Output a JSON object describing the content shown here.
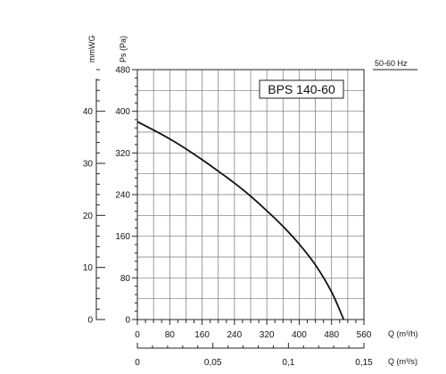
{
  "chart_data": {
    "type": "line",
    "model_label": "BPS 140-60",
    "frequency_label": "50-60 Hz",
    "ylabel_pa": "Ps (Pa)",
    "ylabel_mmwg": "mmWG",
    "xlabel_m3h": "Q (m³/h)",
    "xlabel_m3s": "Q (m³/s)",
    "xlim_m3h": [
      0,
      560
    ],
    "ylim_pa": [
      0,
      480
    ],
    "xlim_m3s": [
      0,
      0.15
    ],
    "ylim_mmwg": [
      0,
      48
    ],
    "grid": true,
    "x_ticks_m3h": [
      "0",
      "80",
      "160",
      "240",
      "320",
      "400",
      "480",
      "560"
    ],
    "y_ticks_pa": [
      "0",
      "80",
      "160",
      "240",
      "320",
      "400",
      "480"
    ],
    "y_ticks_mmwg": [
      "0",
      "10",
      "20",
      "30",
      "40"
    ],
    "x_ticks_m3s": [
      "0",
      "0,05",
      "0,1",
      "0,15"
    ],
    "series": [
      {
        "x": [
          0,
          40,
          80,
          120,
          160,
          200,
          240,
          280,
          320,
          360,
          400,
          440,
          480,
          510
        ],
        "y": [
          380,
          364,
          347,
          328,
          307,
          285,
          262,
          237,
          209,
          179,
          145,
          105,
          53,
          0
        ]
      }
    ]
  }
}
